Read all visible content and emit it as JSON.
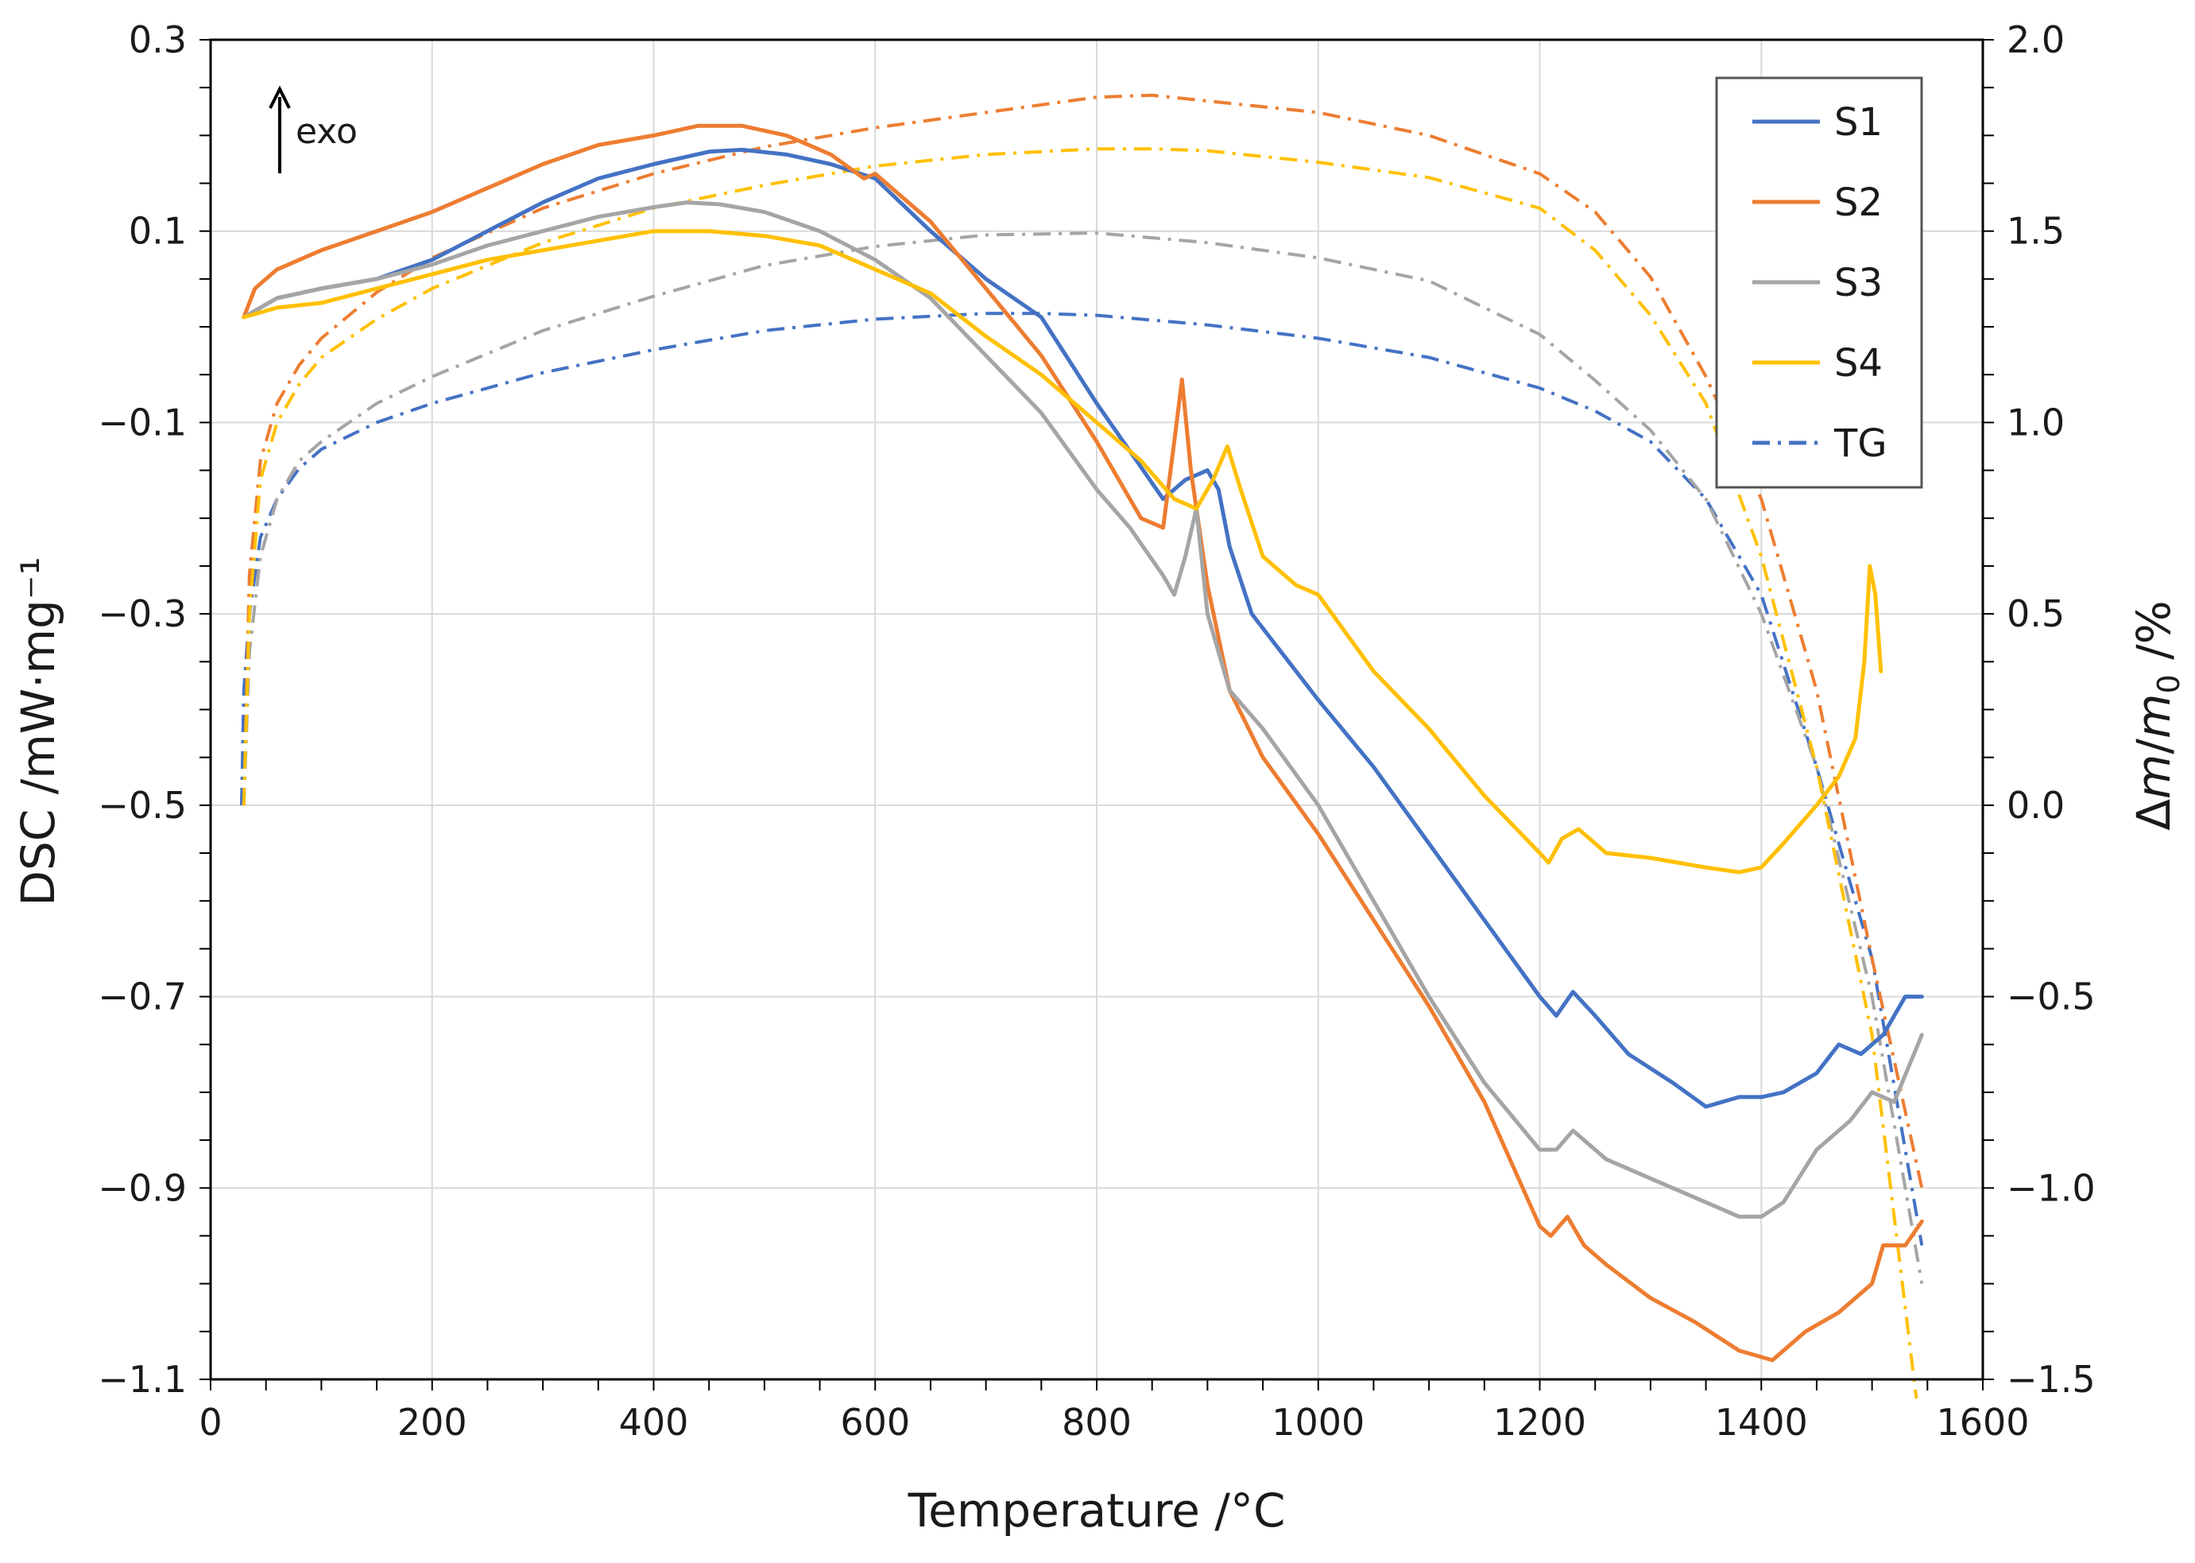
{
  "chart_data": {
    "type": "line",
    "title": "",
    "xlabel": "Temperature /°C",
    "ylabel_left": "DSC /mW·mg⁻¹",
    "ylabel_right_parts": [
      "Δ",
      "m",
      "/",
      "m",
      "0",
      " /%"
    ],
    "annotation": "exo",
    "xlim": [
      0,
      1600
    ],
    "ylim_left": [
      -1.1,
      0.3
    ],
    "ylim_right": [
      -1.5,
      2.0
    ],
    "x_ticks": [
      0,
      200,
      400,
      600,
      800,
      1000,
      1200,
      1400,
      1600
    ],
    "x_tick_labels": [
      "0",
      "200",
      "400",
      "600",
      "800",
      "1000",
      "1200",
      "1400",
      "1600"
    ],
    "y_left_ticks": [
      0.3,
      0.1,
      -0.1,
      -0.3,
      -0.5,
      -0.7,
      -0.9,
      -1.1
    ],
    "y_left_tick_labels": [
      "0.3",
      "0.1",
      "−0.1",
      "−0.3",
      "−0.5",
      "−0.7",
      "−0.9",
      "−1.1"
    ],
    "y_right_ticks": [
      2.0,
      1.5,
      1.0,
      0.5,
      0.0,
      -0.5,
      -1.0,
      -1.5
    ],
    "y_right_tick_labels": [
      "2.0",
      "1.5",
      "1.0",
      "0.5",
      "0.0",
      "−0.5",
      "−1.0",
      "−1.5"
    ],
    "grid": true,
    "legend_position": "top-right",
    "legend": [
      {
        "label": "S1",
        "color": "#4472c4",
        "style": "solid"
      },
      {
        "label": "S2",
        "color": "#ed7d31",
        "style": "solid"
      },
      {
        "label": "S3",
        "color": "#a5a5a5",
        "style": "solid"
      },
      {
        "label": "S4",
        "color": "#ffc000",
        "style": "solid"
      },
      {
        "label": "TG",
        "color": "#4472c4",
        "style": "dash-dot"
      }
    ],
    "dsc_series": [
      {
        "name": "S1",
        "color": "#4472c4",
        "axis": "left",
        "x": [
          30,
          60,
          100,
          150,
          200,
          250,
          300,
          350,
          400,
          450,
          480,
          520,
          560,
          600,
          650,
          700,
          750,
          800,
          830,
          860,
          880,
          900,
          910,
          920,
          940,
          960,
          1000,
          1050,
          1100,
          1150,
          1200,
          1215,
          1230,
          1250,
          1280,
          1320,
          1350,
          1380,
          1400,
          1420,
          1450,
          1470,
          1490,
          1510,
          1530,
          1545
        ],
        "y": [
          0.01,
          0.03,
          0.04,
          0.05,
          0.07,
          0.1,
          0.13,
          0.155,
          0.17,
          0.183,
          0.185,
          0.18,
          0.17,
          0.155,
          0.1,
          0.05,
          0.01,
          -0.08,
          -0.13,
          -0.18,
          -0.16,
          -0.15,
          -0.17,
          -0.23,
          -0.3,
          -0.33,
          -0.39,
          -0.46,
          -0.54,
          -0.62,
          -0.7,
          -0.72,
          -0.695,
          -0.72,
          -0.76,
          -0.79,
          -0.815,
          -0.805,
          -0.805,
          -0.8,
          -0.78,
          -0.75,
          -0.76,
          -0.74,
          -0.7,
          -0.7
        ]
      },
      {
        "name": "S2",
        "color": "#ed7d31",
        "axis": "left",
        "x": [
          30,
          40,
          60,
          100,
          150,
          200,
          250,
          300,
          350,
          400,
          440,
          480,
          520,
          560,
          590,
          600,
          620,
          650,
          700,
          750,
          800,
          840,
          860,
          870,
          877,
          885,
          900,
          920,
          950,
          1000,
          1050,
          1100,
          1150,
          1200,
          1210,
          1225,
          1240,
          1260,
          1300,
          1340,
          1380,
          1410,
          1440,
          1470,
          1500,
          1510,
          1530,
          1545
        ],
        "y": [
          0.01,
          0.04,
          0.06,
          0.08,
          0.1,
          0.12,
          0.145,
          0.17,
          0.19,
          0.2,
          0.21,
          0.21,
          0.2,
          0.18,
          0.155,
          0.16,
          0.14,
          0.11,
          0.04,
          -0.03,
          -0.12,
          -0.2,
          -0.21,
          -0.12,
          -0.055,
          -0.15,
          -0.27,
          -0.38,
          -0.45,
          -0.53,
          -0.62,
          -0.71,
          -0.81,
          -0.94,
          -0.95,
          -0.93,
          -0.96,
          -0.98,
          -1.015,
          -1.04,
          -1.07,
          -1.08,
          -1.05,
          -1.03,
          -1.0,
          -0.96,
          -0.96,
          -0.935
        ]
      },
      {
        "name": "S3",
        "color": "#a5a5a5",
        "axis": "left",
        "x": [
          30,
          60,
          100,
          150,
          200,
          250,
          300,
          350,
          400,
          430,
          460,
          500,
          550,
          600,
          650,
          700,
          750,
          800,
          830,
          860,
          870,
          880,
          890,
          900,
          920,
          950,
          1000,
          1050,
          1100,
          1150,
          1200,
          1215,
          1230,
          1260,
          1300,
          1340,
          1380,
          1400,
          1420,
          1450,
          1480,
          1500,
          1520,
          1545
        ],
        "y": [
          0.01,
          0.03,
          0.04,
          0.05,
          0.065,
          0.085,
          0.1,
          0.115,
          0.125,
          0.13,
          0.128,
          0.12,
          0.1,
          0.07,
          0.03,
          -0.03,
          -0.09,
          -0.17,
          -0.21,
          -0.26,
          -0.28,
          -0.24,
          -0.19,
          -0.3,
          -0.38,
          -0.42,
          -0.5,
          -0.6,
          -0.7,
          -0.79,
          -0.86,
          -0.86,
          -0.84,
          -0.87,
          -0.89,
          -0.91,
          -0.93,
          -0.93,
          -0.915,
          -0.86,
          -0.83,
          -0.8,
          -0.81,
          -0.74
        ]
      },
      {
        "name": "S4",
        "color": "#ffc000",
        "axis": "left",
        "x": [
          30,
          60,
          100,
          150,
          200,
          250,
          300,
          350,
          400,
          450,
          500,
          550,
          600,
          650,
          700,
          750,
          800,
          840,
          870,
          890,
          905,
          918,
          930,
          950,
          980,
          1000,
          1050,
          1100,
          1150,
          1200,
          1208,
          1220,
          1235,
          1260,
          1300,
          1350,
          1380,
          1400,
          1420,
          1450,
          1470,
          1485,
          1493,
          1498,
          1503,
          1508
        ],
        "y": [
          0.01,
          0.02,
          0.025,
          0.04,
          0.055,
          0.07,
          0.08,
          0.09,
          0.1,
          0.1,
          0.095,
          0.085,
          0.06,
          0.035,
          -0.01,
          -0.05,
          -0.1,
          -0.14,
          -0.18,
          -0.19,
          -0.16,
          -0.125,
          -0.17,
          -0.24,
          -0.27,
          -0.28,
          -0.36,
          -0.42,
          -0.49,
          -0.55,
          -0.56,
          -0.535,
          -0.525,
          -0.55,
          -0.555,
          -0.565,
          -0.57,
          -0.565,
          -0.54,
          -0.5,
          -0.47,
          -0.43,
          -0.35,
          -0.25,
          -0.28,
          -0.36
        ]
      }
    ],
    "tg_series": [
      {
        "name": "TG S1",
        "color": "#4472c4",
        "axis": "right",
        "x": [
          28,
          30,
          35,
          45,
          60,
          80,
          100,
          150,
          200,
          300,
          400,
          500,
          600,
          700,
          750,
          800,
          900,
          1000,
          1100,
          1200,
          1250,
          1300,
          1350,
          1400,
          1450,
          1500,
          1545
        ],
        "y": [
          0.0,
          0.3,
          0.5,
          0.7,
          0.8,
          0.88,
          0.93,
          1.0,
          1.05,
          1.13,
          1.19,
          1.24,
          1.27,
          1.285,
          1.285,
          1.28,
          1.255,
          1.22,
          1.17,
          1.09,
          1.03,
          0.95,
          0.8,
          0.55,
          0.1,
          -0.4,
          -1.15
        ]
      },
      {
        "name": "TG S2",
        "color": "#ed7d31",
        "axis": "right",
        "x": [
          30,
          35,
          45,
          60,
          80,
          100,
          150,
          200,
          300,
          400,
          500,
          600,
          700,
          800,
          850,
          900,
          1000,
          1100,
          1200,
          1250,
          1300,
          1350,
          1400,
          1450,
          1500,
          1545
        ],
        "y": [
          0.0,
          0.6,
          0.9,
          1.05,
          1.15,
          1.22,
          1.34,
          1.43,
          1.56,
          1.65,
          1.72,
          1.77,
          1.81,
          1.85,
          1.855,
          1.84,
          1.81,
          1.75,
          1.65,
          1.55,
          1.38,
          1.12,
          0.8,
          0.3,
          -0.4,
          -1.0
        ]
      },
      {
        "name": "TG S3",
        "color": "#a5a5a5",
        "axis": "right",
        "x": [
          30,
          35,
          45,
          60,
          80,
          100,
          150,
          200,
          300,
          400,
          500,
          600,
          700,
          800,
          900,
          1000,
          1100,
          1200,
          1250,
          1300,
          1350,
          1400,
          1450,
          1500,
          1545
        ],
        "y": [
          0.0,
          0.4,
          0.65,
          0.8,
          0.9,
          0.95,
          1.05,
          1.12,
          1.24,
          1.33,
          1.41,
          1.46,
          1.49,
          1.495,
          1.47,
          1.43,
          1.37,
          1.23,
          1.11,
          0.98,
          0.8,
          0.5,
          0.1,
          -0.5,
          -1.25
        ]
      },
      {
        "name": "TG S4",
        "color": "#ffc000",
        "axis": "right",
        "x": [
          30,
          35,
          45,
          60,
          80,
          100,
          150,
          200,
          300,
          400,
          500,
          600,
          700,
          800,
          850,
          900,
          1000,
          1100,
          1200,
          1250,
          1300,
          1350,
          1400,
          1450,
          1500,
          1540
        ],
        "y": [
          0.0,
          0.5,
          0.85,
          1.0,
          1.1,
          1.17,
          1.27,
          1.35,
          1.47,
          1.56,
          1.62,
          1.67,
          1.7,
          1.715,
          1.715,
          1.71,
          1.68,
          1.64,
          1.56,
          1.45,
          1.28,
          1.05,
          0.65,
          0.1,
          -0.6,
          -1.55
        ]
      }
    ]
  }
}
